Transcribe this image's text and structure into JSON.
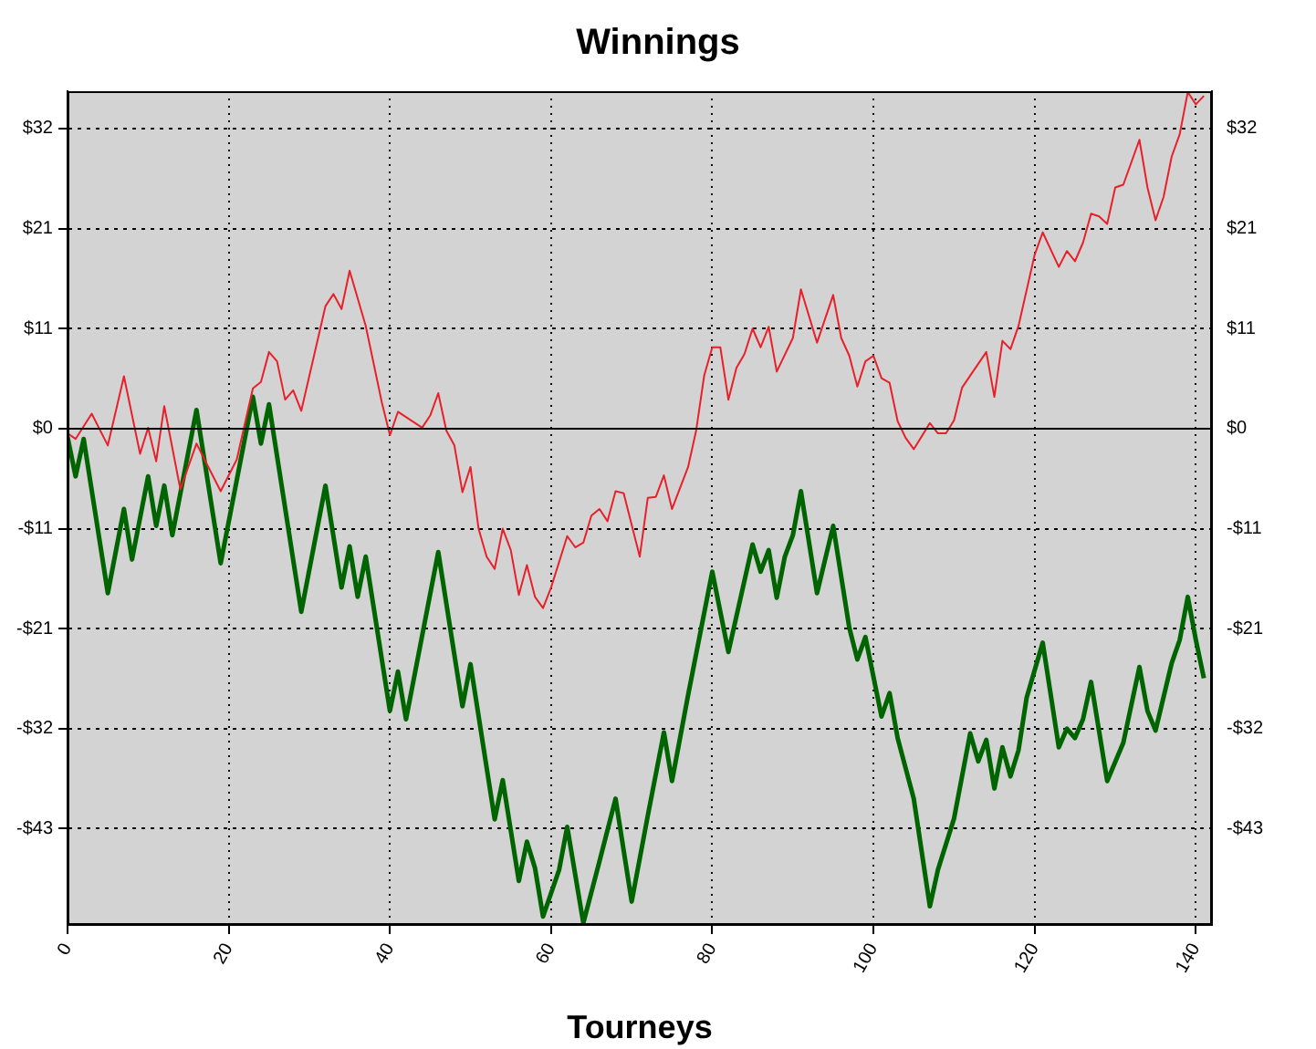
{
  "chart_data": {
    "type": "line",
    "title": "Winnings",
    "xlabel": "Tourneys",
    "xlim": [
      0,
      142
    ],
    "xticks": [
      0,
      20,
      40,
      60,
      80,
      100,
      120,
      140
    ],
    "ylim": [
      -53.1,
      36.1
    ],
    "yticks": [
      {
        "value": -42.8,
        "label": "-$43"
      },
      {
        "value": -32.1,
        "label": "-$32"
      },
      {
        "value": -21.4,
        "label": "-$21"
      },
      {
        "value": -10.7,
        "label": "-$11"
      },
      {
        "value": 0,
        "label": "$0"
      },
      {
        "value": 10.7,
        "label": "$11"
      },
      {
        "value": 21.4,
        "label": "$21"
      },
      {
        "value": 32.1,
        "label": "$32"
      }
    ],
    "y2lim": [
      -53.1,
      36.1
    ],
    "y2ticks": [
      {
        "value": -42.8,
        "label": "-$43"
      },
      {
        "value": -32.1,
        "label": "-$32"
      },
      {
        "value": -21.4,
        "label": "-$21"
      },
      {
        "value": -10.7,
        "label": "-$11"
      },
      {
        "value": 0,
        "label": "$0"
      },
      {
        "value": 10.7,
        "label": "$11"
      },
      {
        "value": 21.4,
        "label": "$21"
      },
      {
        "value": 32.1,
        "label": "$32"
      }
    ],
    "grid": true,
    "legend": false,
    "marker": "none",
    "line_style": "solid",
    "ref_lines": [
      {
        "axis": "y",
        "value": 0,
        "color": "#000000"
      }
    ],
    "series": [
      {
        "color": "#e8202a",
        "x": [
          0,
          1,
          3,
          5,
          7,
          9,
          10,
          11,
          12,
          14,
          16,
          19,
          21,
          23,
          24,
          25,
          26,
          27,
          28,
          29,
          32,
          33,
          34,
          35,
          37,
          39,
          40,
          41,
          44,
          45,
          46,
          47,
          48,
          49,
          50,
          51,
          52,
          53,
          54,
          55,
          56,
          57,
          58,
          59,
          60,
          62,
          63,
          64,
          65,
          66,
          67,
          68,
          69,
          71,
          72,
          73,
          74,
          75,
          77,
          78,
          79,
          80,
          81,
          82,
          83,
          84,
          85,
          86,
          87,
          88,
          90,
          91,
          93,
          95,
          96,
          97,
          98,
          99,
          100,
          101,
          102,
          103,
          104,
          105,
          107,
          108,
          109,
          110,
          111,
          114,
          115,
          116,
          117,
          118,
          120,
          121,
          123,
          124,
          125,
          126,
          127,
          128,
          129,
          130,
          131,
          133,
          134,
          135,
          136,
          137,
          138,
          139,
          140,
          141
        ],
        "values": [
          -0.5,
          -1.1,
          1.6,
          -1.8,
          5.6,
          -2.7,
          0.1,
          -3.5,
          2.4,
          -6.5,
          -1.6,
          -6.7,
          -3.3,
          4.3,
          5.0,
          8.2,
          7.2,
          3.1,
          4.1,
          1.9,
          13.1,
          14.4,
          12.8,
          16.9,
          11.0,
          2.8,
          -0.7,
          1.8,
          0.1,
          1.4,
          3.8,
          -0.2,
          -1.8,
          -6.8,
          -4.1,
          -10.7,
          -13.7,
          -15.0,
          -10.7,
          -13.0,
          -17.8,
          -14.6,
          -18.0,
          -19.2,
          -17.0,
          -11.5,
          -12.7,
          -12.2,
          -9.3,
          -8.6,
          -9.9,
          -6.7,
          -6.9,
          -13.7,
          -7.4,
          -7.3,
          -5.0,
          -8.6,
          -4.1,
          -0.2,
          5.7,
          8.7,
          8.7,
          3.1,
          6.5,
          8.0,
          10.7,
          8.7,
          10.9,
          6.1,
          9.7,
          14.9,
          9.2,
          14.3,
          9.7,
          7.8,
          4.5,
          7.2,
          7.8,
          5.4,
          4.9,
          0.8,
          -1.0,
          -2.2,
          0.6,
          -0.5,
          -0.5,
          0.9,
          4.4,
          8.2,
          3.4,
          9.4,
          8.5,
          11.0,
          18.6,
          21.0,
          17.3,
          19.0,
          17.9,
          19.9,
          23.0,
          22.7,
          21.9,
          25.8,
          26.1,
          30.9,
          25.8,
          22.3,
          24.8,
          29.1,
          31.5,
          36.0,
          34.7,
          35.6
        ]
      },
      {
        "color": "#006400",
        "x": [
          0,
          1,
          2,
          5,
          7,
          8,
          10,
          11,
          12,
          13,
          16,
          19,
          23,
          24,
          25,
          29,
          32,
          34,
          35,
          36,
          37,
          40,
          41,
          42,
          46,
          49,
          50,
          53,
          54,
          56,
          57,
          58,
          59,
          61,
          62,
          64,
          66,
          68,
          70,
          72,
          74,
          75,
          77,
          80,
          82,
          85,
          86,
          87,
          88,
          89,
          90,
          91,
          93,
          95,
          97,
          98,
          99,
          101,
          102,
          103,
          105,
          107,
          108,
          110,
          112,
          113,
          114,
          115,
          116,
          117,
          118,
          119,
          121,
          123,
          124,
          125,
          126,
          127,
          129,
          131,
          133,
          134,
          135,
          137,
          138,
          139,
          140,
          141
        ],
        "values": [
          -0.9,
          -5.1,
          -1.1,
          -17.6,
          -8.6,
          -14.0,
          -5.1,
          -10.4,
          -6.1,
          -11.4,
          2.0,
          -14.4,
          3.4,
          -1.6,
          2.6,
          -19.6,
          -6.1,
          -17.0,
          -12.6,
          -18.0,
          -13.7,
          -30.2,
          -26.0,
          -31.1,
          -13.2,
          -29.7,
          -25.2,
          -41.8,
          -37.6,
          -48.4,
          -44.2,
          -47.0,
          -52.2,
          -47.2,
          -42.6,
          -52.9,
          -46.3,
          -39.6,
          -50.6,
          -41.4,
          -32.5,
          -37.7,
          -28.5,
          -15.3,
          -23.9,
          -12.4,
          -15.3,
          -13.0,
          -18.1,
          -13.7,
          -11.4,
          -6.7,
          -17.6,
          -10.4,
          -21.3,
          -24.7,
          -22.3,
          -30.8,
          -28.3,
          -33.1,
          -39.6,
          -51.1,
          -47.2,
          -41.7,
          -32.6,
          -35.6,
          -33.3,
          -38.5,
          -34.1,
          -37.2,
          -34.4,
          -28.8,
          -22.9,
          -34.1,
          -32.1,
          -33.1,
          -31.1,
          -27.1,
          -37.7,
          -33.6,
          -25.5,
          -30.2,
          -32.3,
          -25.1,
          -22.6,
          -18.0,
          -22.6,
          -26.7
        ]
      }
    ]
  }
}
